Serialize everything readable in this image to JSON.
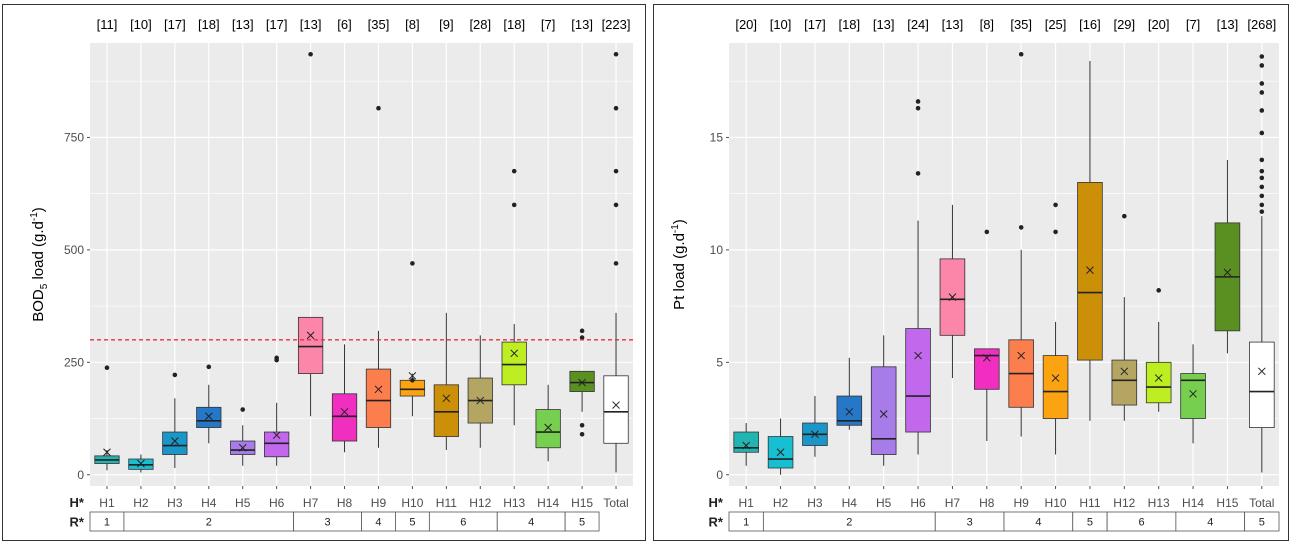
{
  "chart_data": [
    {
      "type": "box",
      "panel": "left",
      "ylabel_main": "BOD",
      "ylabel_sub": "5",
      "ylabel_mid": " load (g.d",
      "ylabel_sup": "-1",
      "ylabel_end": ")",
      "ylim": [
        -25,
        960
      ],
      "yticks": [
        0,
        250,
        500,
        750
      ],
      "categories": [
        "H1",
        "H2",
        "H3",
        "H4",
        "H5",
        "H6",
        "H7",
        "H8",
        "H9",
        "H10",
        "H11",
        "H12",
        "H13",
        "H14",
        "H15",
        "Total"
      ],
      "counts": [
        "[11]",
        "[10]",
        "[17]",
        "[18]",
        "[13]",
        "[17]",
        "[13]",
        "[6]",
        "[35]",
        "[8]",
        "[9]",
        "[28]",
        "[18]",
        "[7]",
        "[13]",
        "[223]"
      ],
      "colors": [
        "#21b5b1",
        "#17bfd3",
        "#1a96c8",
        "#2577c7",
        "#a77ce8",
        "#c168ec",
        "#fb86aa",
        "#f02fc0",
        "#fc7e4c",
        "#fca312",
        "#cc8f08",
        "#b5a563",
        "#bcee22",
        "#77cf4f",
        "#5a8f22",
        "#ffffff"
      ],
      "boxes": [
        {
          "min": 10,
          "q1": 25,
          "median": 33,
          "q3": 42,
          "max": 55,
          "mean": 50,
          "outliers": [
            238
          ]
        },
        {
          "min": 5,
          "q1": 12,
          "median": 22,
          "q3": 35,
          "max": 45,
          "mean": 25,
          "outliers": []
        },
        {
          "min": 15,
          "q1": 45,
          "median": 65,
          "q3": 95,
          "max": 170,
          "mean": 75,
          "outliers": [
            222
          ]
        },
        {
          "min": 70,
          "q1": 105,
          "median": 120,
          "q3": 150,
          "max": 200,
          "mean": 130,
          "outliers": [
            240
          ]
        },
        {
          "min": 20,
          "q1": 45,
          "median": 55,
          "q3": 75,
          "max": 110,
          "mean": 60,
          "outliers": [
            145
          ]
        },
        {
          "min": 20,
          "q1": 40,
          "median": 70,
          "q3": 95,
          "max": 160,
          "mean": 88,
          "outliers": [
            255,
            260
          ]
        },
        {
          "min": 130,
          "q1": 225,
          "median": 285,
          "q3": 350,
          "max": 350,
          "mean": 310,
          "outliers": [
            935
          ]
        },
        {
          "min": 50,
          "q1": 75,
          "median": 130,
          "q3": 180,
          "max": 290,
          "mean": 140,
          "outliers": []
        },
        {
          "min": 60,
          "q1": 105,
          "median": 165,
          "q3": 235,
          "max": 320,
          "mean": 190,
          "outliers": [
            815
          ]
        },
        {
          "min": 130,
          "q1": 175,
          "median": 190,
          "q3": 210,
          "max": 225,
          "mean": 220,
          "outliers": [
            210,
            470
          ]
        },
        {
          "min": 55,
          "q1": 85,
          "median": 140,
          "q3": 200,
          "max": 360,
          "mean": 170,
          "outliers": []
        },
        {
          "min": 60,
          "q1": 115,
          "median": 165,
          "q3": 215,
          "max": 310,
          "mean": 165,
          "outliers": []
        },
        {
          "min": 110,
          "q1": 200,
          "median": 245,
          "q3": 295,
          "max": 335,
          "mean": 270,
          "outliers": [
            600,
            675
          ]
        },
        {
          "min": 30,
          "q1": 60,
          "median": 95,
          "q3": 145,
          "max": 200,
          "mean": 105,
          "outliers": []
        },
        {
          "min": 140,
          "q1": 185,
          "median": 205,
          "q3": 230,
          "max": 230,
          "mean": 205,
          "outliers": [
            90,
            110,
            305,
            320
          ]
        },
        {
          "min": 5,
          "q1": 70,
          "median": 140,
          "q3": 220,
          "max": 360,
          "mean": 155,
          "outliers": [
            470,
            600,
            675,
            815,
            935
          ]
        }
      ],
      "threshold": 300,
      "threshold_color": "#e8323c",
      "h_label": "H*",
      "r_label": "R*",
      "r_groups": [
        {
          "label": "1",
          "from": 0,
          "to": 0
        },
        {
          "label": "2",
          "from": 1,
          "to": 5
        },
        {
          "label": "3",
          "from": 6,
          "to": 7
        },
        {
          "label": "4",
          "from": 8,
          "to": 8
        },
        {
          "label": "5",
          "from": 9,
          "to": 9
        },
        {
          "label": "6",
          "from": 10,
          "to": 11
        },
        {
          "label": "4",
          "from": 12,
          "to": 13
        },
        {
          "label": "5",
          "from": 14,
          "to": 14
        }
      ]
    },
    {
      "type": "box",
      "panel": "right",
      "ylabel_main": "Pt",
      "ylabel_sub": "",
      "ylabel_mid": " load (g.d",
      "ylabel_sup": "-1",
      "ylabel_end": ")",
      "ylim": [
        -0.5,
        19.2
      ],
      "yticks": [
        0,
        5,
        10,
        15
      ],
      "categories": [
        "H1",
        "H2",
        "H3",
        "H4",
        "H5",
        "H6",
        "H7",
        "H8",
        "H9",
        "H10",
        "H11",
        "H12",
        "H13",
        "H14",
        "H15",
        "Total"
      ],
      "counts": [
        "[20]",
        "[10]",
        "[17]",
        "[18]",
        "[13]",
        "[24]",
        "[13]",
        "[8]",
        "[35]",
        "[25]",
        "[16]",
        "[29]",
        "[20]",
        "[7]",
        "[13]",
        "[268]"
      ],
      "colors": [
        "#21b5b1",
        "#17bfd3",
        "#1a96c8",
        "#2577c7",
        "#a77ce8",
        "#c168ec",
        "#fb86aa",
        "#f02fc0",
        "#fc7e4c",
        "#fca312",
        "#cc8f08",
        "#b5a563",
        "#bcee22",
        "#77cf4f",
        "#5a8f22",
        "#ffffff"
      ],
      "boxes": [
        {
          "min": 0.4,
          "q1": 1.0,
          "median": 1.2,
          "q3": 1.9,
          "max": 2.3,
          "mean": 1.3,
          "outliers": []
        },
        {
          "min": 0.0,
          "q1": 0.3,
          "median": 0.7,
          "q3": 1.7,
          "max": 2.5,
          "mean": 1.0,
          "outliers": []
        },
        {
          "min": 0.8,
          "q1": 1.3,
          "median": 1.8,
          "q3": 2.3,
          "max": 3.5,
          "mean": 1.8,
          "outliers": []
        },
        {
          "min": 2.0,
          "q1": 2.2,
          "median": 2.4,
          "q3": 3.5,
          "max": 5.2,
          "mean": 2.8,
          "outliers": []
        },
        {
          "min": 0.4,
          "q1": 0.9,
          "median": 1.6,
          "q3": 4.8,
          "max": 6.2,
          "mean": 2.7,
          "outliers": []
        },
        {
          "min": 0.9,
          "q1": 1.9,
          "median": 3.5,
          "q3": 6.5,
          "max": 11.3,
          "mean": 5.3,
          "outliers": [
            13.4,
            16.3,
            16.6
          ]
        },
        {
          "min": 4.3,
          "q1": 6.2,
          "median": 7.8,
          "q3": 9.6,
          "max": 12.0,
          "mean": 7.9,
          "outliers": []
        },
        {
          "min": 1.5,
          "q1": 3.8,
          "median": 5.3,
          "q3": 5.6,
          "max": 5.6,
          "mean": 5.2,
          "outliers": [
            10.8
          ]
        },
        {
          "min": 1.7,
          "q1": 3.0,
          "median": 4.5,
          "q3": 6.0,
          "max": 10.0,
          "mean": 5.3,
          "outliers": [
            11.0,
            18.7
          ]
        },
        {
          "min": 0.9,
          "q1": 2.5,
          "median": 3.7,
          "q3": 5.3,
          "max": 6.8,
          "mean": 4.3,
          "outliers": [
            10.8,
            12.0
          ]
        },
        {
          "min": 2.4,
          "q1": 5.1,
          "median": 8.1,
          "q3": 13.0,
          "max": 18.4,
          "mean": 9.1,
          "outliers": []
        },
        {
          "min": 2.4,
          "q1": 3.1,
          "median": 4.2,
          "q3": 5.1,
          "max": 7.9,
          "mean": 4.6,
          "outliers": [
            11.5
          ]
        },
        {
          "min": 2.8,
          "q1": 3.2,
          "median": 3.9,
          "q3": 5.0,
          "max": 6.8,
          "mean": 4.3,
          "outliers": [
            8.2
          ]
        },
        {
          "min": 1.4,
          "q1": 2.5,
          "median": 4.2,
          "q3": 4.5,
          "max": 5.8,
          "mean": 3.6,
          "outliers": []
        },
        {
          "min": 5.4,
          "q1": 6.4,
          "median": 8.8,
          "q3": 11.2,
          "max": 14.0,
          "mean": 9.0,
          "outliers": []
        },
        {
          "min": 0.1,
          "q1": 2.1,
          "median": 3.7,
          "q3": 5.9,
          "max": 11.5,
          "mean": 4.6,
          "outliers": [
            11.7,
            12.0,
            12.4,
            12.8,
            13.2,
            13.5,
            14.0,
            15.2,
            16.2,
            17.0,
            17.4,
            18.2,
            18.6
          ]
        }
      ],
      "h_label": "H*",
      "r_label": "R*",
      "r_groups": [
        {
          "label": "1",
          "from": 0,
          "to": 0
        },
        {
          "label": "2",
          "from": 1,
          "to": 5
        },
        {
          "label": "3",
          "from": 6,
          "to": 7
        },
        {
          "label": "4",
          "from": 8,
          "to": 9
        },
        {
          "label": "5",
          "from": 10,
          "to": 10
        },
        {
          "label": "6",
          "from": 11,
          "to": 12
        },
        {
          "label": "4",
          "from": 13,
          "to": 14
        },
        {
          "label": "5",
          "from": 15,
          "to": 15
        }
      ]
    }
  ]
}
